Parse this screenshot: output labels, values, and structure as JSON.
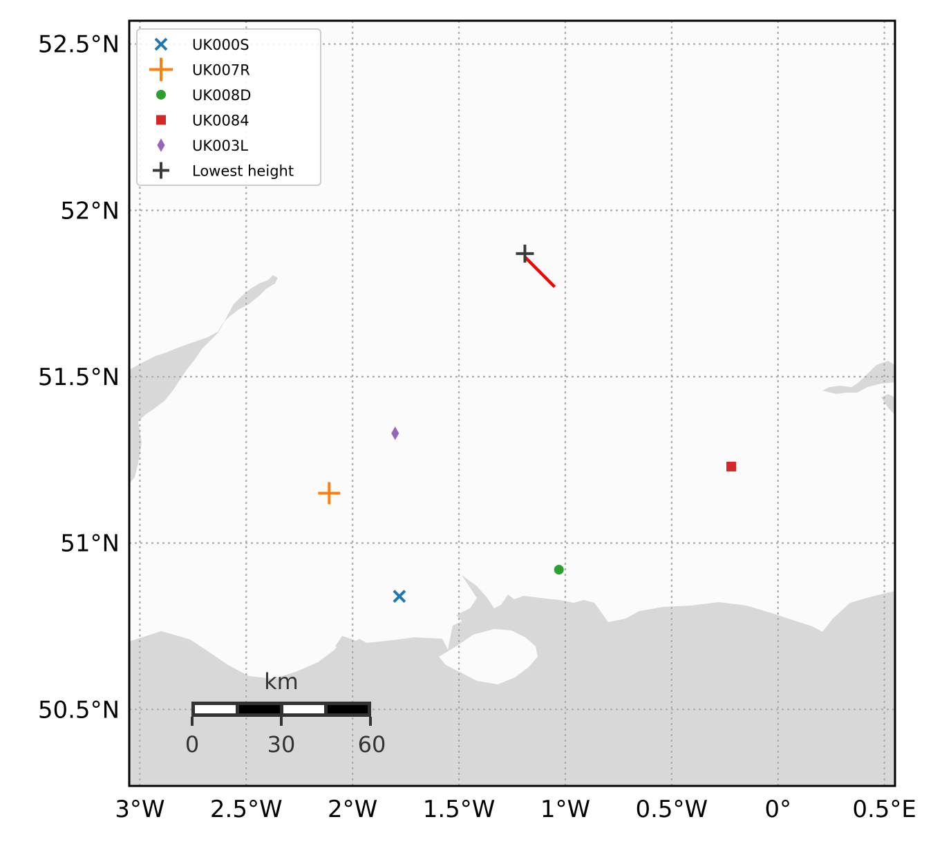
{
  "map": {
    "lon_range": [
      -3.05,
      0.55
    ],
    "lat_range": [
      50.27,
      52.57
    ],
    "gridlines": "dotted",
    "x_ticks": [
      {
        "lon": -3.0,
        "label": "3°W"
      },
      {
        "lon": -2.5,
        "label": "2.5°W"
      },
      {
        "lon": -2.0,
        "label": "2°W"
      },
      {
        "lon": -1.5,
        "label": "1.5°W"
      },
      {
        "lon": -1.0,
        "label": "1°W"
      },
      {
        "lon": -0.5,
        "label": "0.5°W"
      },
      {
        "lon": 0.0,
        "label": "0°"
      },
      {
        "lon": 0.5,
        "label": "0.5°E"
      }
    ],
    "y_ticks": [
      {
        "lat": 52.5,
        "label": "52.5°N"
      },
      {
        "lat": 52.0,
        "label": "52°N"
      },
      {
        "lat": 51.5,
        "label": "51.5°N"
      },
      {
        "lat": 51.0,
        "label": "51°N"
      },
      {
        "lat": 50.5,
        "label": "50.5°N"
      }
    ],
    "colors": {
      "land": "#fbfbfb",
      "sea": "#d8d8d8",
      "grid": "#aaaaaa"
    }
  },
  "stations": [
    {
      "id": "UK000S",
      "lon": -1.78,
      "lat": 50.84,
      "marker": "x",
      "color": "#1f77b4"
    },
    {
      "id": "UK007R",
      "lon": -2.11,
      "lat": 51.15,
      "marker": "plus",
      "color": "#ff7f0e"
    },
    {
      "id": "UK008D",
      "lon": -1.03,
      "lat": 50.92,
      "marker": "circle",
      "color": "#2ca02c"
    },
    {
      "id": "UK0084",
      "lon": -0.22,
      "lat": 51.23,
      "marker": "square",
      "color": "#d62728"
    },
    {
      "id": "UK003L",
      "lon": -1.8,
      "lat": 51.33,
      "marker": "diamond",
      "color": "#9467bd"
    }
  ],
  "lowest_height": {
    "label": "Lowest height",
    "lon": -1.19,
    "lat": 51.87,
    "color": "#3a3a3a"
  },
  "track": {
    "color": "#ff0000",
    "points": [
      [
        -1.19,
        51.86
      ],
      [
        -1.05,
        51.77
      ]
    ]
  },
  "legend": {
    "placement": "upper-left",
    "entries": [
      "UK000S",
      "UK007R",
      "UK008D",
      "UK0084",
      "UK003L",
      "Lowest height"
    ]
  },
  "scalebar": {
    "unit": "km",
    "labels": [
      "0",
      "30",
      "60"
    ]
  }
}
